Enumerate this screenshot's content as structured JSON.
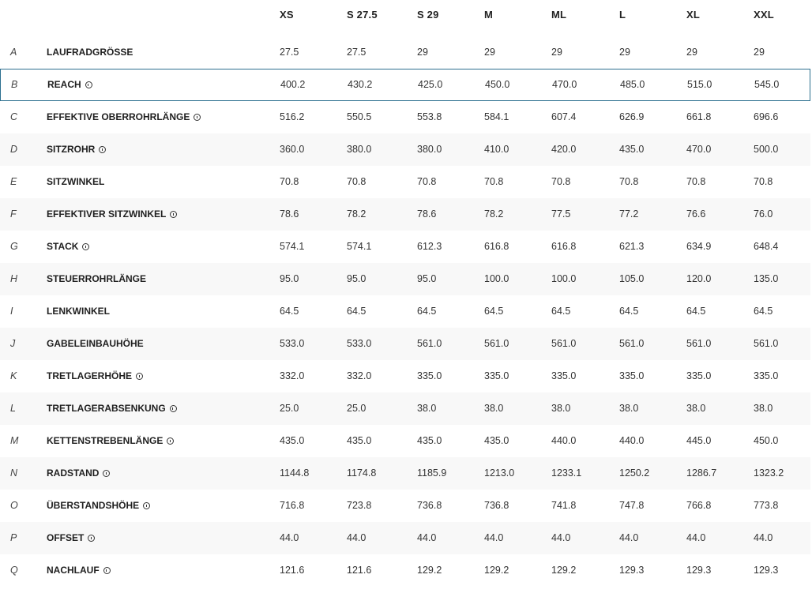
{
  "sizes": [
    "XS",
    "S 27.5",
    "S 29",
    "M",
    "ML",
    "L",
    "XL",
    "XXL"
  ],
  "highlighted_row": "B",
  "rows": [
    {
      "letter": "A",
      "name": "LAUFRADGRÖSSE",
      "info": false,
      "values": [
        "27.5",
        "27.5",
        "29",
        "29",
        "29",
        "29",
        "29",
        "29"
      ]
    },
    {
      "letter": "B",
      "name": "REACH",
      "info": true,
      "values": [
        "400.2",
        "430.2",
        "425.0",
        "450.0",
        "470.0",
        "485.0",
        "515.0",
        "545.0"
      ]
    },
    {
      "letter": "C",
      "name": "EFFEKTIVE OBERROHRLÄNGE",
      "info": true,
      "values": [
        "516.2",
        "550.5",
        "553.8",
        "584.1",
        "607.4",
        "626.9",
        "661.8",
        "696.6"
      ]
    },
    {
      "letter": "D",
      "name": "SITZROHR",
      "info": true,
      "values": [
        "360.0",
        "380.0",
        "380.0",
        "410.0",
        "420.0",
        "435.0",
        "470.0",
        "500.0"
      ]
    },
    {
      "letter": "E",
      "name": "SITZWINKEL",
      "info": false,
      "values": [
        "70.8",
        "70.8",
        "70.8",
        "70.8",
        "70.8",
        "70.8",
        "70.8",
        "70.8"
      ]
    },
    {
      "letter": "F",
      "name": "EFFEKTIVER SITZWINKEL",
      "info": true,
      "values": [
        "78.6",
        "78.2",
        "78.6",
        "78.2",
        "77.5",
        "77.2",
        "76.6",
        "76.0"
      ]
    },
    {
      "letter": "G",
      "name": "STACK",
      "info": true,
      "values": [
        "574.1",
        "574.1",
        "612.3",
        "616.8",
        "616.8",
        "621.3",
        "634.9",
        "648.4"
      ]
    },
    {
      "letter": "H",
      "name": "STEUERROHRLÄNGE",
      "info": false,
      "values": [
        "95.0",
        "95.0",
        "95.0",
        "100.0",
        "100.0",
        "105.0",
        "120.0",
        "135.0"
      ]
    },
    {
      "letter": "I",
      "name": "LENKWINKEL",
      "info": false,
      "values": [
        "64.5",
        "64.5",
        "64.5",
        "64.5",
        "64.5",
        "64.5",
        "64.5",
        "64.5"
      ]
    },
    {
      "letter": "J",
      "name": "GABELEINBAUHÖHE",
      "info": false,
      "values": [
        "533.0",
        "533.0",
        "561.0",
        "561.0",
        "561.0",
        "561.0",
        "561.0",
        "561.0"
      ]
    },
    {
      "letter": "K",
      "name": "TRETLAGERHÖHE",
      "info": true,
      "values": [
        "332.0",
        "332.0",
        "335.0",
        "335.0",
        "335.0",
        "335.0",
        "335.0",
        "335.0"
      ]
    },
    {
      "letter": "L",
      "name": "TRETLAGERABSENKUNG",
      "info": true,
      "values": [
        "25.0",
        "25.0",
        "38.0",
        "38.0",
        "38.0",
        "38.0",
        "38.0",
        "38.0"
      ]
    },
    {
      "letter": "M",
      "name": "KETTENSTREBENLÄNGE",
      "info": true,
      "values": [
        "435.0",
        "435.0",
        "435.0",
        "435.0",
        "440.0",
        "440.0",
        "445.0",
        "450.0"
      ]
    },
    {
      "letter": "N",
      "name": "RADSTAND",
      "info": true,
      "values": [
        "1144.8",
        "1174.8",
        "1185.9",
        "1213.0",
        "1233.1",
        "1250.2",
        "1286.7",
        "1323.2"
      ]
    },
    {
      "letter": "O",
      "name": "ÜBERSTANDSHÖHE",
      "info": true,
      "values": [
        "716.8",
        "723.8",
        "736.8",
        "736.8",
        "741.8",
        "747.8",
        "766.8",
        "773.8"
      ]
    },
    {
      "letter": "P",
      "name": "OFFSET",
      "info": true,
      "values": [
        "44.0",
        "44.0",
        "44.0",
        "44.0",
        "44.0",
        "44.0",
        "44.0",
        "44.0"
      ]
    },
    {
      "letter": "Q",
      "name": "NACHLAUF",
      "info": true,
      "values": [
        "121.6",
        "121.6",
        "129.2",
        "129.2",
        "129.2",
        "129.3",
        "129.3",
        "129.3"
      ]
    }
  ],
  "colors": {
    "highlight_border": "#2c6f8f",
    "alt_row": "#f8f8f8"
  }
}
